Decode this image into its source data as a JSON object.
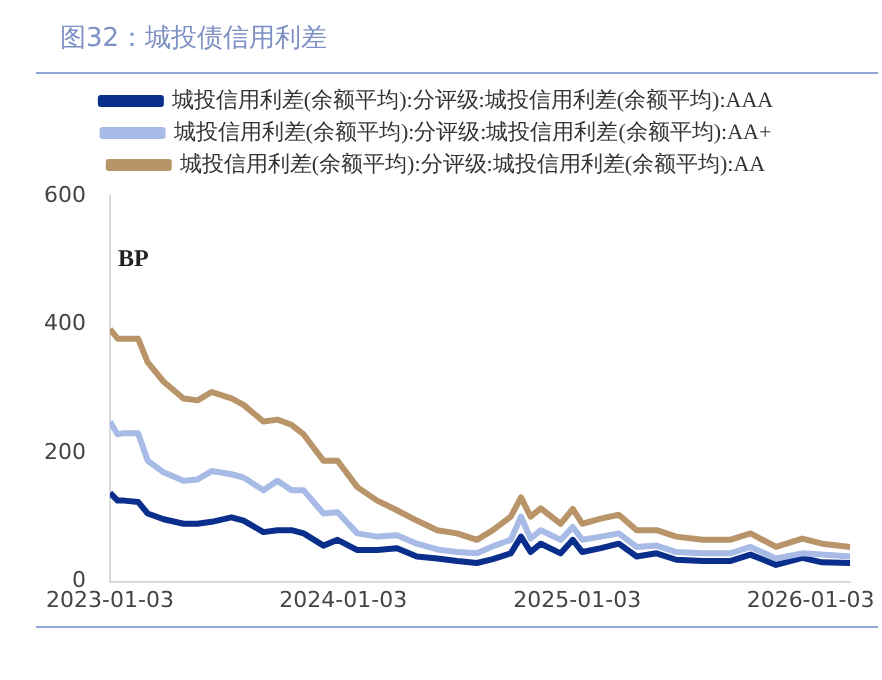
{
  "chart_data": {
    "type": "line",
    "title": "图32：城投债信用利差",
    "ylabel": "BP",
    "x": [
      "2023-01-03",
      "2023-01-15",
      "2023-01-25",
      "2023-02-16",
      "2023-03-03",
      "2023-03-28",
      "2023-04-28",
      "2023-05-20",
      "2023-06-11",
      "2023-07-12",
      "2023-07-31",
      "2023-08-31",
      "2023-09-22",
      "2023-10-14",
      "2023-11-02",
      "2023-12-03",
      "2023-12-25",
      "2024-01-25",
      "2024-02-25",
      "2024-03-27",
      "2024-04-27",
      "2024-05-29",
      "2024-06-29",
      "2024-07-30",
      "2024-08-24",
      "2024-09-21",
      "2024-10-07",
      "2024-10-22",
      "2024-11-07",
      "2024-12-08",
      "2024-12-27",
      "2025-01-11",
      "2025-02-09",
      "2025-03-09",
      "2025-04-06",
      "2025-05-07",
      "2025-06-07",
      "2025-07-18",
      "2025-08-30",
      "2025-10-01",
      "2025-11-10",
      "2025-12-21",
      "2026-01-21",
      "2026-03-06"
    ],
    "series": [
      {
        "name": "城投信用利差(余额平均):分评级:城投信用利差(余额平均):AAA",
        "color": "#0a2e8c",
        "values": [
          138,
          126,
          126,
          124,
          106,
          97,
          90,
          90,
          93,
          100,
          95,
          77,
          80,
          80,
          75,
          56,
          65,
          49,
          49,
          52,
          39,
          36,
          32,
          29,
          35,
          44,
          70,
          46,
          59,
          44,
          65,
          46,
          52,
          59,
          39,
          44,
          34,
          32,
          32,
          42,
          26,
          37,
          30,
          29
        ]
      },
      {
        "name": "城投信用利差(余额平均):分评级:城投信用利差(余额平均):AA+",
        "color": "#a7bbe6",
        "values": [
          249,
          229,
          231,
          231,
          188,
          170,
          157,
          159,
          172,
          167,
          162,
          142,
          157,
          142,
          142,
          106,
          108,
          75,
          70,
          72,
          59,
          50,
          46,
          44,
          55,
          65,
          101,
          67,
          80,
          65,
          85,
          65,
          70,
          75,
          54,
          56,
          46,
          44,
          44,
          54,
          36,
          44,
          42,
          39
        ]
      },
      {
        "name": "城投信用利差(余额平均):分评级:城投信用利差(余额平均):AA",
        "color": "#b89468",
        "values": [
          393,
          378,
          378,
          378,
          341,
          311,
          285,
          282,
          295,
          285,
          275,
          249,
          252,
          244,
          229,
          188,
          188,
          147,
          126,
          111,
          95,
          80,
          75,
          65,
          80,
          101,
          131,
          101,
          114,
          90,
          113,
          90,
          98,
          104,
          80,
          80,
          70,
          65,
          65,
          75,
          54,
          67,
          59,
          54
        ]
      }
    ],
    "xlim": [
      "2023-01-03",
      "2026-03-06"
    ],
    "xticks": [
      "2023-01-03",
      "2024-01-03",
      "2025-01-03",
      "2026-01-03"
    ],
    "ylim": [
      0,
      600
    ],
    "yticks": [
      0,
      200,
      400,
      600
    ],
    "legend": "top"
  }
}
